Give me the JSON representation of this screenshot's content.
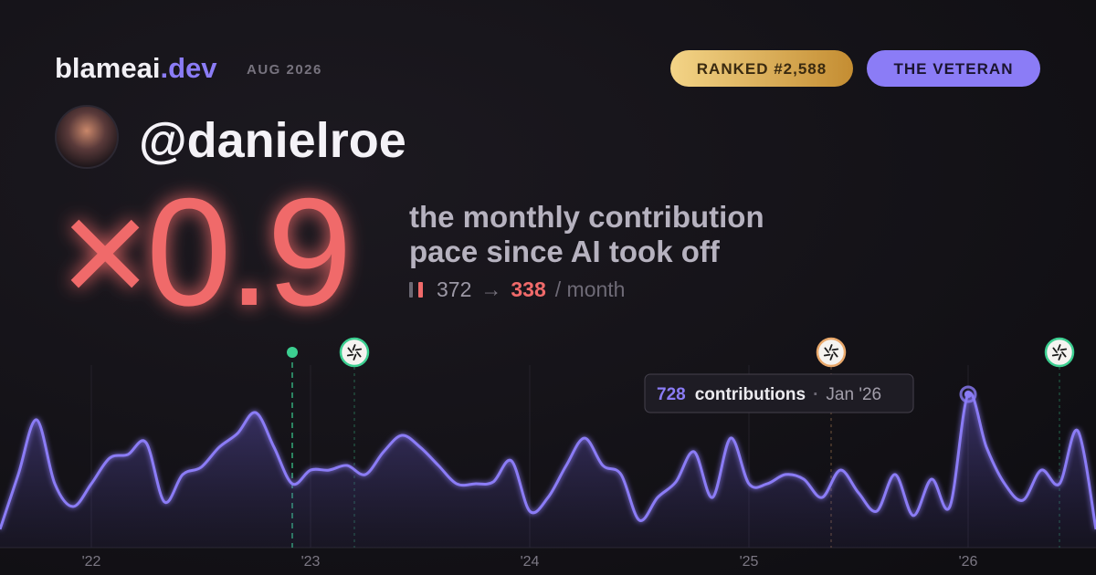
{
  "brand": {
    "name": "blameai",
    "tld": ".dev"
  },
  "date": "AUG 2026",
  "badges": [
    "RANKED #2,588",
    "THE VETERAN"
  ],
  "handle": "@danielroe",
  "multiplier": "×0.9",
  "description": [
    "the monthly contribution",
    "pace since AI took off"
  ],
  "pace": {
    "before": 372,
    "arrow": "→",
    "after": 338,
    "unit": "/ month"
  },
  "chart_data": {
    "type": "area",
    "color": "#8b7cf6",
    "values": [
      87,
      347,
      607,
      303,
      195,
      303,
      425,
      442,
      498,
      217,
      347,
      381,
      477,
      542,
      641,
      477,
      303,
      368,
      368,
      390,
      347,
      455,
      533,
      477,
      390,
      303,
      303,
      312,
      412,
      173,
      238,
      390,
      520,
      390,
      347,
      130,
      238,
      312,
      455,
      238,
      520,
      303,
      303,
      347,
      325,
      238,
      368,
      260,
      173,
      347,
      152,
      325,
      195,
      728,
      477,
      303,
      225,
      368,
      303,
      555,
      87
    ],
    "xlim": [
      0,
      60
    ],
    "ylim": [
      0,
      780
    ],
    "xticks": [
      {
        "value": 5,
        "label": "'22"
      },
      {
        "value": 17,
        "label": "'23"
      },
      {
        "value": 29,
        "label": "'24"
      },
      {
        "value": 41,
        "label": "'25"
      },
      {
        "value": 53,
        "label": "'26"
      }
    ],
    "start_marker": {
      "x": 16,
      "color": "#3ccf91"
    },
    "markers": [
      {
        "x": 19.4,
        "color": "#3ccf91"
      },
      {
        "x": 45.5,
        "color": "#e9a86b"
      },
      {
        "x": 58,
        "color": "#3ccf91"
      }
    ],
    "tooltip": {
      "unit": "contributions",
      "separator": "·",
      "label": "Jan '26"
    }
  }
}
